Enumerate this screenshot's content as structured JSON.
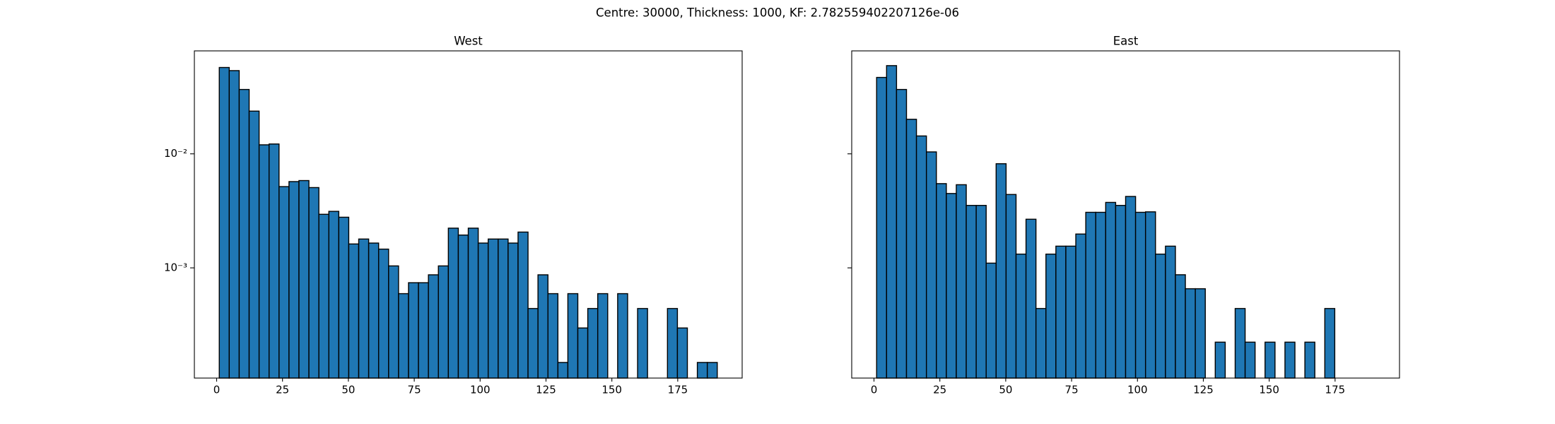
{
  "title": "Centre: 30000, Thickness: 1000, KF: 2.782559402207126e-06",
  "chart_data": [
    {
      "type": "histogram",
      "title": "West",
      "yscale": "log",
      "color": "#1f77b4",
      "edgecolor": "#000000",
      "bins": [
        1,
        4.78,
        8.56,
        12.34,
        16.12,
        19.9,
        23.68,
        27.46,
        31.24,
        35.02,
        38.8,
        42.58,
        46.36,
        50.14,
        53.92,
        57.7,
        61.48,
        65.26,
        69.04,
        72.82,
        76.6,
        80.38,
        84.16,
        87.94,
        91.72,
        95.5,
        99.28,
        103.06,
        106.84,
        110.62,
        114.4,
        118.18,
        121.96,
        125.74,
        129.52,
        133.3,
        137.08,
        140.86,
        144.64,
        148.42,
        152.2,
        155.98,
        159.76,
        163.54,
        167.32,
        171.1,
        174.88,
        178.66,
        182.44,
        186.22,
        190
      ],
      "values": [
        0.0572,
        0.0537,
        0.0367,
        0.0237,
        0.012,
        0.0122,
        0.00516,
        0.00571,
        0.00583,
        0.00506,
        0.00295,
        0.00313,
        0.00278,
        0.00162,
        0.00179,
        0.00165,
        0.00146,
        0.00104,
        0.000594,
        0.000741,
        0.000741,
        0.000869,
        0.00104,
        0.00223,
        0.00194,
        0.00223,
        0.00165,
        0.00179,
        0.00179,
        0.00165,
        0.00206,
        0.00044,
        0.000869,
        0.000594,
        0.000148,
        0.000594,
        0.000297,
        0.00044,
        0.000594,
        0,
        0.000594,
        0,
        0.00044,
        0,
        0,
        0.00044,
        0.000297,
        0,
        0.000148,
        0.000148
      ],
      "xlim": [
        -8.45,
        199.45
      ],
      "xticks": [
        0,
        25,
        50,
        75,
        100,
        125,
        150,
        175
      ],
      "ylim": [
        0.000108,
        0.08
      ],
      "yticks": [
        {
          "value": 0.01,
          "label": "10⁻²"
        },
        {
          "value": 0.001,
          "label": "10⁻³"
        }
      ],
      "show_ytick_labels": true
    },
    {
      "type": "histogram",
      "title": "East",
      "yscale": "log",
      "color": "#1f77b4",
      "edgecolor": "#000000",
      "bins": [
        1,
        4.78,
        8.56,
        12.34,
        16.12,
        19.9,
        23.68,
        27.46,
        31.24,
        35.02,
        38.8,
        42.58,
        46.36,
        50.14,
        53.92,
        57.7,
        61.48,
        65.26,
        69.04,
        72.82,
        76.6,
        80.38,
        84.16,
        87.94,
        91.72,
        95.5,
        99.28,
        103.06,
        106.84,
        110.62,
        114.4,
        118.18,
        121.96,
        125.74,
        129.52,
        133.3,
        137.08,
        140.86,
        144.64,
        148.42,
        152.2,
        155.98,
        159.76,
        163.54,
        167.32,
        171.1,
        174.88,
        178.66,
        182.44,
        186.22,
        190
      ],
      "values": [
        0.0468,
        0.0594,
        0.0367,
        0.0201,
        0.01435,
        0.0104,
        0.00548,
        0.00449,
        0.00536,
        0.00353,
        0.00353,
        0.0011,
        0.00819,
        0.0044,
        0.00132,
        0.00267,
        0.00044,
        0.00132,
        0.00155,
        0.00155,
        0.00198,
        0.00307,
        0.00307,
        0.00375,
        0.00353,
        0.00423,
        0.00307,
        0.0031,
        0.00132,
        0.00155,
        0.00087,
        0.000656,
        0.000656,
        0,
        0.000223,
        0,
        0.00044,
        0.000223,
        0,
        0.000223,
        0,
        0.000223,
        0,
        0.000223,
        0,
        0.00044,
        0,
        0,
        0,
        0
      ],
      "xlim": [
        -8.45,
        199.45
      ],
      "xticks": [
        0,
        25,
        50,
        75,
        100,
        125,
        150,
        175
      ],
      "ylim": [
        0.000108,
        0.08
      ],
      "yticks": [
        {
          "value": 0.01
        },
        {
          "value": 0.001
        }
      ],
      "show_ytick_labels": false
    }
  ]
}
